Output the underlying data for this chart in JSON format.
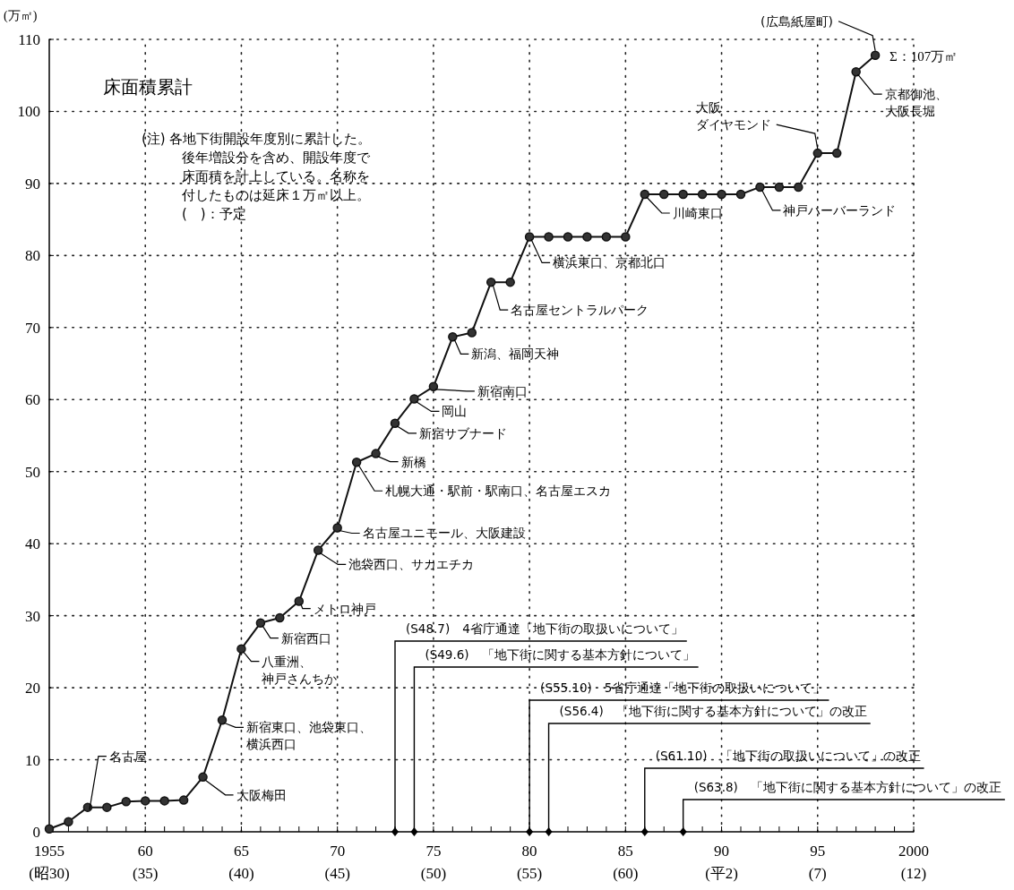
{
  "chart_data": {
    "type": "line",
    "title": "床面積累計",
    "ylabel": "(万㎡)",
    "x": [
      1955,
      1956,
      1957,
      1958,
      1959,
      1960,
      1961,
      1962,
      1963,
      1964,
      1965,
      1966,
      1967,
      1968,
      1969,
      1970,
      1971,
      1972,
      1973,
      1974,
      1975,
      1976,
      1977,
      1978,
      1979,
      1980,
      1981,
      1982,
      1983,
      1984,
      1985,
      1986,
      1987,
      1988,
      1989,
      1990,
      1991,
      1992,
      1993,
      1994,
      1995,
      1996,
      1997,
      1998
    ],
    "series": [
      {
        "color": "#111111",
        "values": [
          0.4,
          1.4,
          3.4,
          3.4,
          4.2,
          4.3,
          4.3,
          4.4,
          7.6,
          15.5,
          25.4,
          29.0,
          29.7,
          32.0,
          39.1,
          42.2,
          51.3,
          52.5,
          56.7,
          60.1,
          61.8,
          68.7,
          69.3,
          76.3,
          76.3,
          82.6,
          82.6,
          82.6,
          82.6,
          82.6,
          82.6,
          88.5,
          88.5,
          88.5,
          88.5,
          88.5,
          88.5,
          89.5,
          89.5,
          89.5,
          94.2,
          94.2,
          105.5,
          107.8
        ]
      }
    ],
    "marker": "circle",
    "line_style": "solid",
    "grid": true,
    "xlim": [
      1955,
      2000
    ],
    "ylim": [
      0,
      110
    ],
    "yticks": [
      0,
      10,
      20,
      30,
      40,
      50,
      60,
      70,
      80,
      90,
      100,
      110
    ],
    "xticks": [
      1955,
      {
        "value": 1956,
        "label": null
      },
      {
        "value": 1957,
        "label": null
      },
      {
        "value": 1958,
        "label": null
      },
      {
        "value": 1959,
        "label": null
      },
      {
        "value": 1960,
        "label": "60"
      },
      {
        "value": 1961,
        "label": null
      },
      {
        "value": 1962,
        "label": null
      },
      {
        "value": 1963,
        "label": null
      },
      {
        "value": 1964,
        "label": null
      },
      {
        "value": 1965,
        "label": "65"
      },
      {
        "value": 1966,
        "label": null
      },
      {
        "value": 1967,
        "label": null
      },
      {
        "value": 1968,
        "label": null
      },
      {
        "value": 1969,
        "label": null
      },
      {
        "value": 1970,
        "label": "70"
      },
      {
        "value": 1971,
        "label": null
      },
      {
        "value": 1972,
        "label": null
      },
      {
        "value": 1973,
        "label": null
      },
      {
        "value": 1974,
        "label": null
      },
      {
        "value": 1975,
        "label": "75"
      },
      {
        "value": 1976,
        "label": null
      },
      {
        "value": 1977,
        "label": null
      },
      {
        "value": 1978,
        "label": null
      },
      {
        "value": 1979,
        "label": null
      },
      {
        "value": 1980,
        "label": "80"
      },
      {
        "value": 1981,
        "label": null
      },
      {
        "value": 1982,
        "label": null
      },
      {
        "value": 1983,
        "label": null
      },
      {
        "value": 1984,
        "label": null
      },
      {
        "value": 1985,
        "label": "85"
      },
      {
        "value": 1986,
        "label": null
      },
      {
        "value": 1987,
        "label": null
      },
      {
        "value": 1988,
        "label": null
      },
      {
        "value": 1989,
        "label": null
      },
      {
        "value": 1990,
        "label": "90"
      },
      {
        "value": 1991,
        "label": null
      },
      {
        "value": 1992,
        "label": null
      },
      {
        "value": 1993,
        "label": null
      },
      {
        "value": 1994,
        "label": null
      },
      {
        "value": 1995,
        "label": "95"
      },
      {
        "value": 1996,
        "label": null
      },
      {
        "value": 1997,
        "label": null
      },
      {
        "value": 1998,
        "label": null
      },
      {
        "value": 1999,
        "label": null
      },
      2000
    ],
    "ref_lines": [
      {
        "axis": "x",
        "value": 1973,
        "label": "(S48.7)　4省庁通達「地下街の取扱いについて」"
      },
      {
        "axis": "x",
        "value": 1974,
        "label": "(S49.6)　「地下街に関する基本方針について」"
      },
      {
        "axis": "x",
        "value": 1980,
        "label": "(S55.10)　5省庁通達「地下街の取扱いについて」"
      },
      {
        "axis": "x",
        "value": 1981,
        "label": "(S56.4)　「地下街に関する基本方針について」の改正"
      },
      {
        "axis": "x",
        "value": 1986,
        "label": "(S61.10)　「地下街の取扱いについて」の改正"
      },
      {
        "axis": "x",
        "value": 1988,
        "label": "(S63.8)　「地下街に関する基本方針について」の改正"
      }
    ],
    "annotations": [
      "(注) 各地下街開設年度別に累計した。後年増設分を含め、開設年度で床面積を計上している。名称を付したものは延床１万㎡以上。(　)：予定",
      {
        "text": "名古屋",
        "x": 1957,
        "y": 3.4
      },
      {
        "text": "大阪梅田",
        "x": 1963,
        "y": 7.6
      },
      {
        "text": "新宿東口、池袋東口、横浜西口",
        "x": 1964,
        "y": 15.5
      },
      {
        "text": "八重洲、神戸さんちか",
        "x": 1965,
        "y": 25.4
      },
      {
        "text": "新宿西口",
        "x": 1966,
        "y": 29.0
      },
      {
        "text": "メトロ神戸",
        "x": 1968,
        "y": 32.0
      },
      {
        "text": "池袋西口、サカエチカ",
        "x": 1969,
        "y": 39.1
      },
      {
        "text": "名古屋ユニモール、大阪建設",
        "x": 1970,
        "y": 42.2
      },
      {
        "text": "札幌大通・駅前・駅南口、名古屋エスカ",
        "x": 1971,
        "y": 51.3
      },
      {
        "text": "新橋",
        "x": 1972,
        "y": 52.5
      },
      {
        "text": "新宿サブナード",
        "x": 1973,
        "y": 56.7
      },
      {
        "text": "岡山",
        "x": 1974,
        "y": 60.1
      },
      {
        "text": "新宿南口",
        "x": 1975,
        "y": 61.8
      },
      {
        "text": "新潟、福岡天神",
        "x": 1976,
        "y": 68.7
      },
      {
        "text": "名古屋セントラルパーク",
        "x": 1978,
        "y": 76.3
      },
      {
        "text": "横浜東口、京都北口",
        "x": 1980,
        "y": 82.6
      },
      {
        "text": "川崎東口",
        "x": 1986,
        "y": 88.5
      },
      {
        "text": "神戸ハーバーランド",
        "x": 1992,
        "y": 89.5
      },
      {
        "text": "大阪ダイヤモンド",
        "x": 1995,
        "y": 94.2
      },
      {
        "text": "京都御池、大阪長堀",
        "x": 1997,
        "y": 105.5
      },
      {
        "text": "(広島紙屋町)",
        "x": 1998,
        "y": 107.8
      },
      {
        "text": "Σ：107万㎡",
        "x": 1998,
        "y": 107.8
      },
      "(昭30)",
      "(35)",
      "(40)",
      "(45)",
      "(50)",
      "(55)",
      "(60)",
      "(平2)",
      "(7)",
      "(12)"
    ]
  }
}
